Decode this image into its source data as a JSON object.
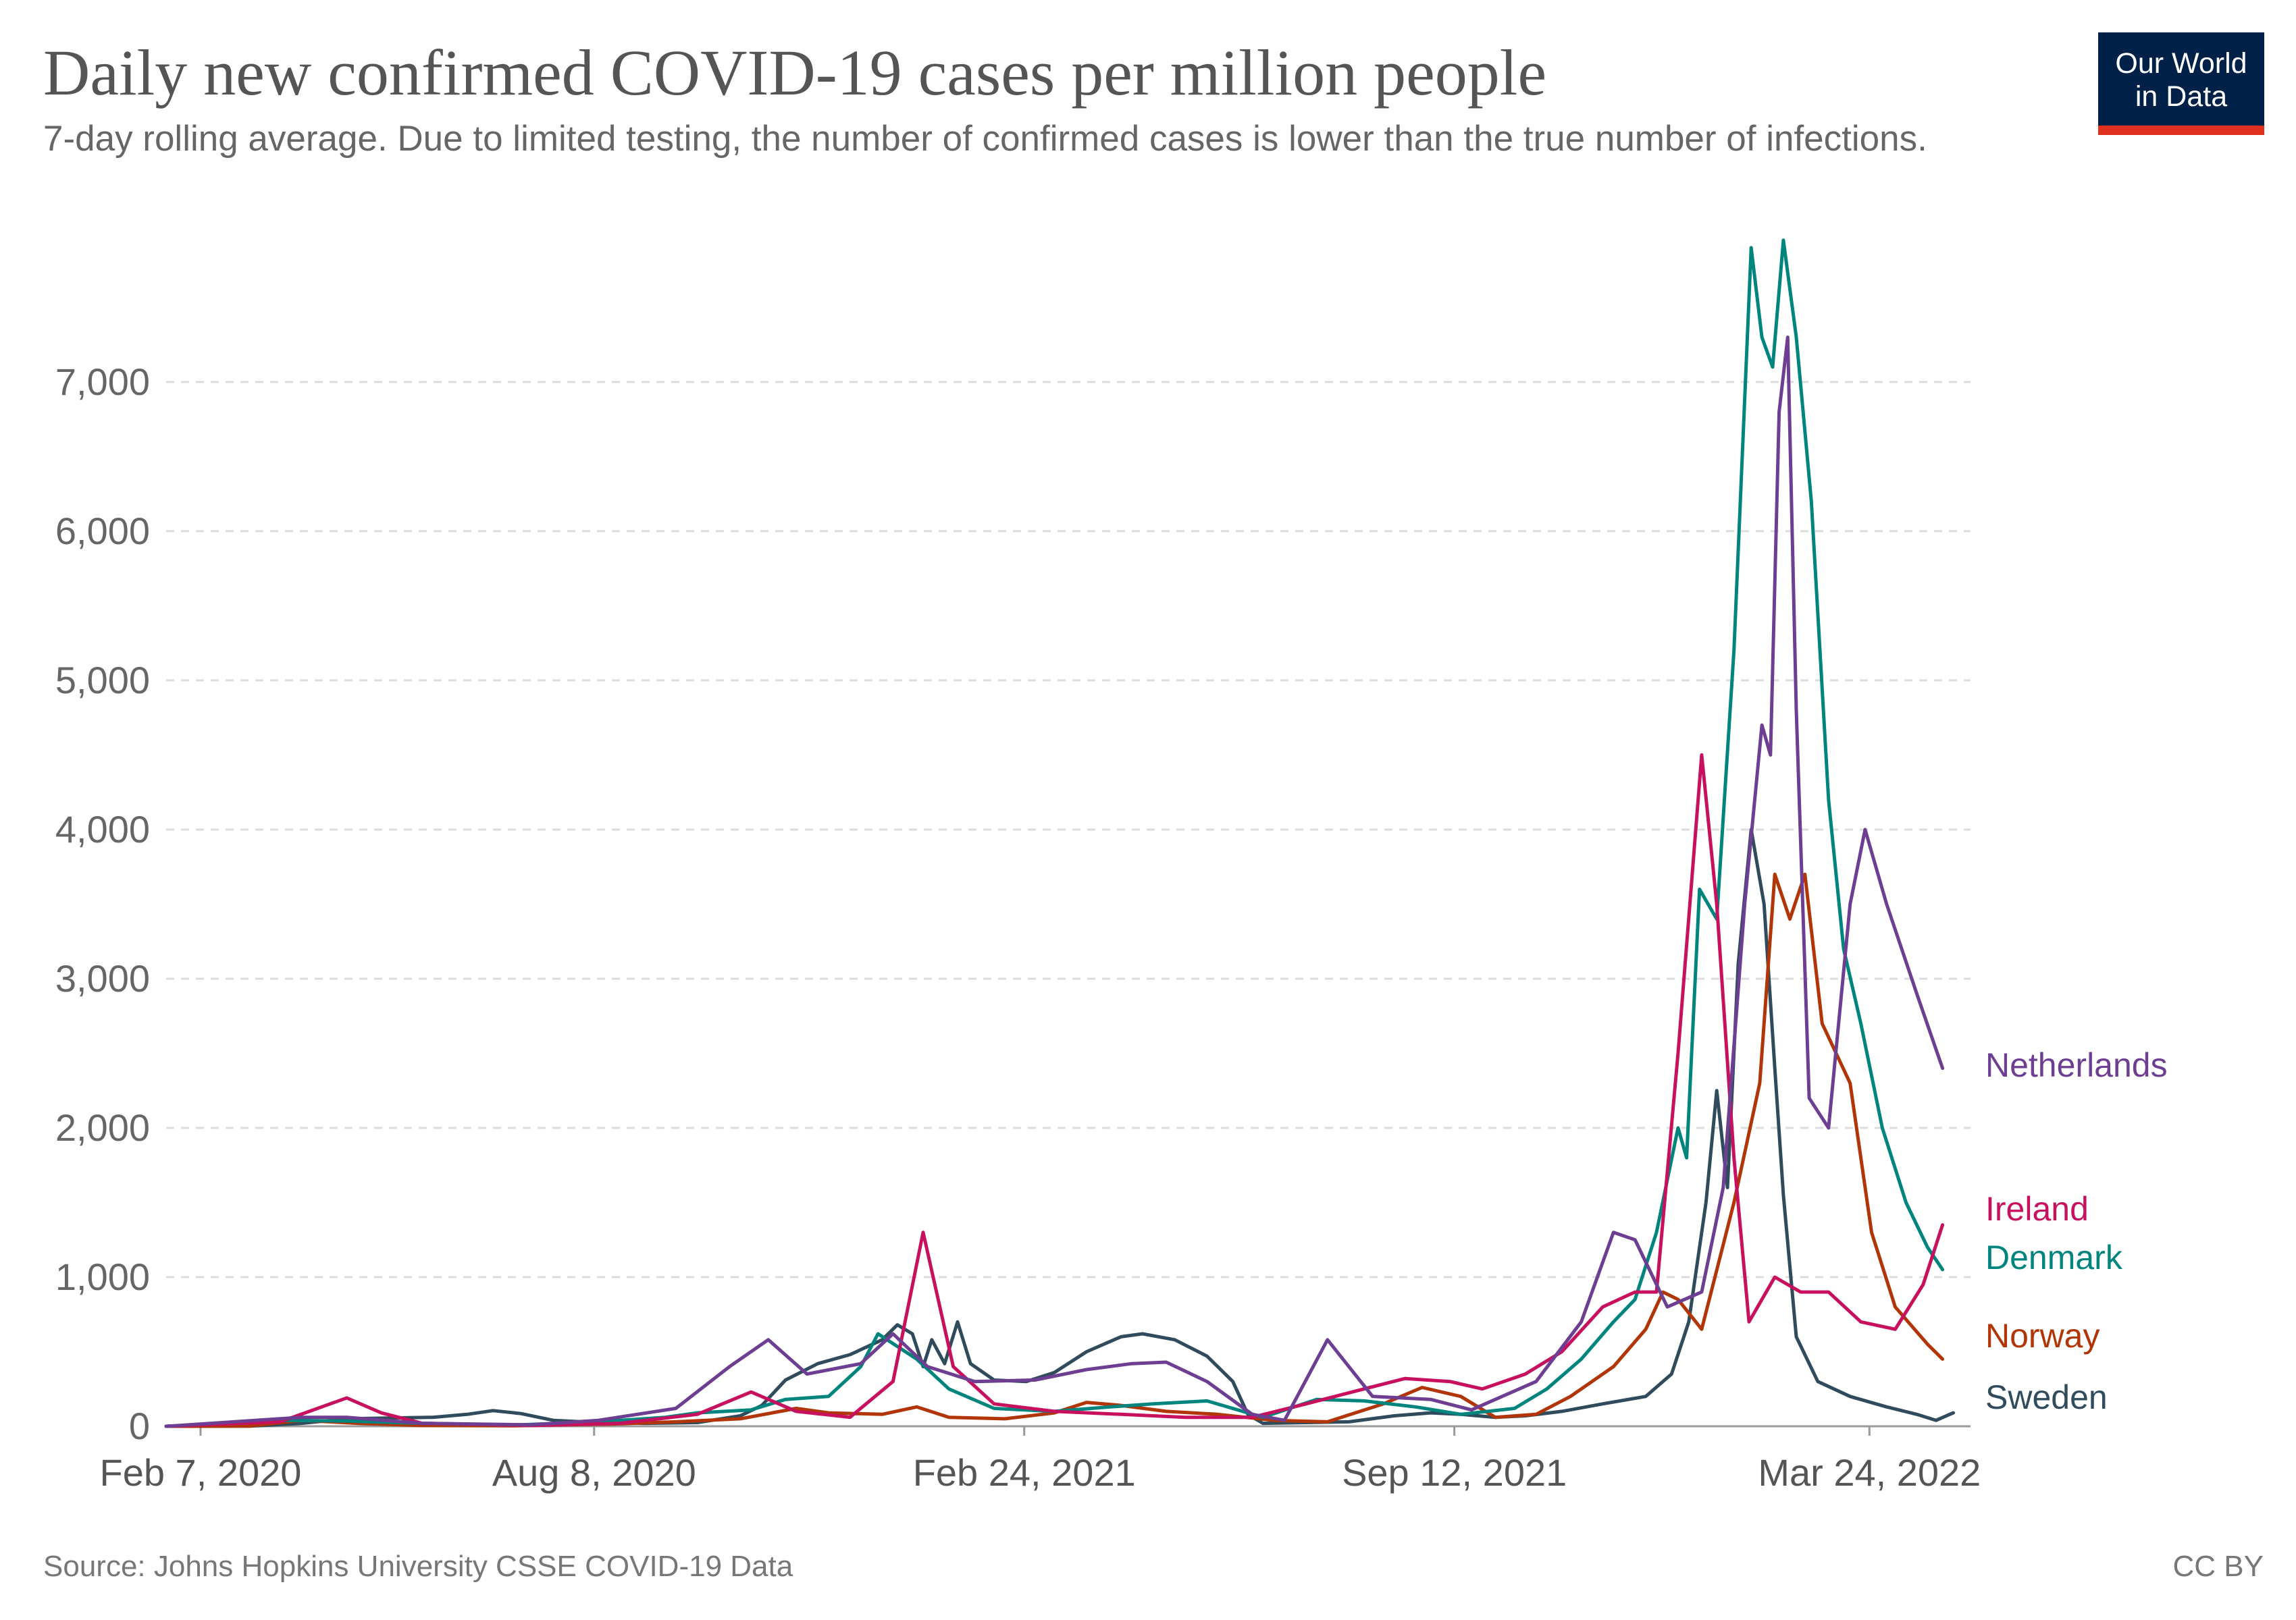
{
  "title": "Daily new confirmed COVID-19 cases per million people",
  "subtitle": "7-day rolling average. Due to limited testing, the number of confirmed cases is lower than the true number of infections.",
  "logo": {
    "line1": "Our World",
    "line2": "in Data"
  },
  "source": "Source: Johns Hopkins University CSSE COVID-19 Data",
  "license": "CC BY",
  "colors": {
    "Netherlands": "#6d3e91",
    "Ireland": "#c8115e",
    "Denmark": "#00847e",
    "Norway": "#b13507",
    "Sweden": "#2f4b5c",
    "grid": "#dddddd",
    "axis": "#999999"
  },
  "chart_data": {
    "type": "line",
    "x_axis": "date",
    "xlim": [
      "2020-01-22",
      "2022-05-10"
    ],
    "ylim": [
      0,
      7900
    ],
    "x_ticks": [
      {
        "date": "2020-02-07",
        "label": "Feb 7, 2020"
      },
      {
        "date": "2020-08-08",
        "label": "Aug 8, 2020"
      },
      {
        "date": "2021-02-24",
        "label": "Feb 24, 2021"
      },
      {
        "date": "2021-09-12",
        "label": "Sep 12, 2021"
      },
      {
        "date": "2022-03-24",
        "label": "Mar 24, 2022"
      }
    ],
    "y_ticks": [
      {
        "value": 0,
        "label": "0"
      },
      {
        "value": 1000,
        "label": "1,000"
      },
      {
        "value": 2000,
        "label": "2,000"
      },
      {
        "value": 3000,
        "label": "3,000"
      },
      {
        "value": 4000,
        "label": "4,000"
      },
      {
        "value": 5000,
        "label": "5,000"
      },
      {
        "value": 6000,
        "label": "6,000"
      },
      {
        "value": 7000,
        "label": "7,000"
      }
    ],
    "grid": "horizontal dashed",
    "legend": "labels at line ends (right)",
    "series": [
      {
        "name": "Sweden",
        "points": [
          [
            "2020-01-22",
            0
          ],
          [
            "2020-03-01",
            1
          ],
          [
            "2020-03-25",
            20
          ],
          [
            "2020-04-15",
            50
          ],
          [
            "2020-05-05",
            55
          ],
          [
            "2020-05-25",
            60
          ],
          [
            "2020-06-10",
            80
          ],
          [
            "2020-06-22",
            105
          ],
          [
            "2020-07-05",
            85
          ],
          [
            "2020-07-20",
            40
          ],
          [
            "2020-08-10",
            25
          ],
          [
            "2020-09-01",
            20
          ],
          [
            "2020-09-25",
            25
          ],
          [
            "2020-10-15",
            70
          ],
          [
            "2020-10-25",
            140
          ],
          [
            "2020-11-05",
            310
          ],
          [
            "2020-11-20",
            420
          ],
          [
            "2020-12-05",
            480
          ],
          [
            "2020-12-20",
            580
          ],
          [
            "2020-12-27",
            680
          ],
          [
            "2021-01-03",
            620
          ],
          [
            "2021-01-08",
            400
          ],
          [
            "2021-01-12",
            580
          ],
          [
            "2021-01-18",
            420
          ],
          [
            "2021-01-24",
            700
          ],
          [
            "2021-01-30",
            420
          ],
          [
            "2021-02-10",
            310
          ],
          [
            "2021-02-25",
            300
          ],
          [
            "2021-03-10",
            360
          ],
          [
            "2021-03-25",
            500
          ],
          [
            "2021-04-10",
            600
          ],
          [
            "2021-04-20",
            620
          ],
          [
            "2021-05-05",
            580
          ],
          [
            "2021-05-20",
            470
          ],
          [
            "2021-06-01",
            300
          ],
          [
            "2021-06-08",
            80
          ],
          [
            "2021-06-15",
            20
          ],
          [
            "2021-07-05",
            25
          ],
          [
            "2021-07-25",
            30
          ],
          [
            "2021-08-15",
            70
          ],
          [
            "2021-09-01",
            90
          ],
          [
            "2021-09-15",
            80
          ],
          [
            "2021-10-01",
            60
          ],
          [
            "2021-10-15",
            70
          ],
          [
            "2021-11-01",
            100
          ],
          [
            "2021-11-20",
            150
          ],
          [
            "2021-12-10",
            200
          ],
          [
            "2021-12-22",
            350
          ],
          [
            "2021-12-30",
            700
          ],
          [
            "2022-01-07",
            1500
          ],
          [
            "2022-01-12",
            2250
          ],
          [
            "2022-01-17",
            1600
          ],
          [
            "2022-01-22",
            3100
          ],
          [
            "2022-01-28",
            4000
          ],
          [
            "2022-02-03",
            3500
          ],
          [
            "2022-02-08",
            2400
          ],
          [
            "2022-02-12",
            1550
          ],
          [
            "2022-02-18",
            600
          ],
          [
            "2022-02-28",
            300
          ],
          [
            "2022-03-15",
            200
          ],
          [
            "2022-04-01",
            130
          ],
          [
            "2022-04-15",
            80
          ],
          [
            "2022-04-24",
            40
          ],
          [
            "2022-05-02",
            90
          ]
        ]
      },
      {
        "name": "Norway",
        "points": [
          [
            "2020-01-22",
            0
          ],
          [
            "2020-03-01",
            2
          ],
          [
            "2020-03-25",
            40
          ],
          [
            "2020-04-20",
            20
          ],
          [
            "2020-05-20",
            5
          ],
          [
            "2020-07-01",
            3
          ],
          [
            "2020-08-15",
            15
          ],
          [
            "2020-09-15",
            30
          ],
          [
            "2020-10-15",
            50
          ],
          [
            "2020-11-10",
            120
          ],
          [
            "2020-11-25",
            90
          ],
          [
            "2020-12-20",
            80
          ],
          [
            "2021-01-05",
            130
          ],
          [
            "2021-01-20",
            60
          ],
          [
            "2021-02-15",
            50
          ],
          [
            "2021-03-10",
            90
          ],
          [
            "2021-03-25",
            160
          ],
          [
            "2021-04-10",
            140
          ],
          [
            "2021-05-01",
            100
          ],
          [
            "2021-05-25",
            80
          ],
          [
            "2021-06-20",
            40
          ],
          [
            "2021-07-15",
            30
          ],
          [
            "2021-08-10",
            150
          ],
          [
            "2021-08-28",
            260
          ],
          [
            "2021-09-15",
            200
          ],
          [
            "2021-10-01",
            60
          ],
          [
            "2021-10-20",
            80
          ],
          [
            "2021-11-05",
            200
          ],
          [
            "2021-11-25",
            400
          ],
          [
            "2021-12-10",
            650
          ],
          [
            "2021-12-18",
            900
          ],
          [
            "2021-12-25",
            850
          ],
          [
            "2022-01-05",
            650
          ],
          [
            "2022-01-20",
            1500
          ],
          [
            "2022-02-01",
            2300
          ],
          [
            "2022-02-08",
            3700
          ],
          [
            "2022-02-15",
            3400
          ],
          [
            "2022-02-22",
            3700
          ],
          [
            "2022-03-02",
            2700
          ],
          [
            "2022-03-15",
            2300
          ],
          [
            "2022-03-25",
            1300
          ],
          [
            "2022-04-05",
            800
          ],
          [
            "2022-04-20",
            550
          ],
          [
            "2022-04-27",
            450
          ]
        ]
      },
      {
        "name": "Denmark",
        "points": [
          [
            "2020-01-22",
            0
          ],
          [
            "2020-03-15",
            40
          ],
          [
            "2020-04-15",
            35
          ],
          [
            "2020-05-20",
            20
          ],
          [
            "2020-07-01",
            8
          ],
          [
            "2020-08-10",
            30
          ],
          [
            "2020-09-10",
            60
          ],
          [
            "2020-09-25",
            90
          ],
          [
            "2020-10-20",
            110
          ],
          [
            "2020-11-05",
            180
          ],
          [
            "2020-11-25",
            200
          ],
          [
            "2020-12-10",
            400
          ],
          [
            "2020-12-18",
            620
          ],
          [
            "2021-01-05",
            450
          ],
          [
            "2021-01-20",
            250
          ],
          [
            "2021-02-10",
            120
          ],
          [
            "2021-03-10",
            100
          ],
          [
            "2021-04-05",
            130
          ],
          [
            "2021-04-25",
            150
          ],
          [
            "2021-05-20",
            170
          ],
          [
            "2021-06-15",
            60
          ],
          [
            "2021-07-10",
            180
          ],
          [
            "2021-08-01",
            170
          ],
          [
            "2021-08-25",
            130
          ],
          [
            "2021-09-15",
            80
          ],
          [
            "2021-10-10",
            120
          ],
          [
            "2021-10-25",
            250
          ],
          [
            "2021-11-10",
            450
          ],
          [
            "2021-11-25",
            700
          ],
          [
            "2021-12-05",
            850
          ],
          [
            "2021-12-15",
            1300
          ],
          [
            "2021-12-25",
            2000
          ],
          [
            "2021-12-29",
            1800
          ],
          [
            "2022-01-04",
            3600
          ],
          [
            "2022-01-12",
            3400
          ],
          [
            "2022-01-20",
            5200
          ],
          [
            "2022-01-28",
            7900
          ],
          [
            "2022-02-02",
            7300
          ],
          [
            "2022-02-07",
            7100
          ],
          [
            "2022-02-12",
            7950
          ],
          [
            "2022-02-18",
            7300
          ],
          [
            "2022-02-25",
            6200
          ],
          [
            "2022-03-05",
            4200
          ],
          [
            "2022-03-12",
            3200
          ],
          [
            "2022-03-20",
            2700
          ],
          [
            "2022-03-30",
            2000
          ],
          [
            "2022-04-10",
            1500
          ],
          [
            "2022-04-20",
            1200
          ],
          [
            "2022-04-27",
            1050
          ]
        ]
      },
      {
        "name": "Ireland",
        "points": [
          [
            "2020-01-22",
            0
          ],
          [
            "2020-03-15",
            30
          ],
          [
            "2020-04-15",
            190
          ],
          [
            "2020-05-01",
            90
          ],
          [
            "2020-05-20",
            20
          ],
          [
            "2020-07-10",
            5
          ],
          [
            "2020-08-20",
            20
          ],
          [
            "2020-09-25",
            80
          ],
          [
            "2020-10-20",
            230
          ],
          [
            "2020-11-10",
            100
          ],
          [
            "2020-12-05",
            60
          ],
          [
            "2020-12-25",
            300
          ],
          [
            "2021-01-08",
            1300
          ],
          [
            "2021-01-22",
            400
          ],
          [
            "2021-02-10",
            150
          ],
          [
            "2021-03-10",
            100
          ],
          [
            "2021-04-10",
            80
          ],
          [
            "2021-05-10",
            60
          ],
          [
            "2021-06-10",
            60
          ],
          [
            "2021-07-05",
            150
          ],
          [
            "2021-08-01",
            250
          ],
          [
            "2021-08-20",
            320
          ],
          [
            "2021-09-10",
            300
          ],
          [
            "2021-09-25",
            250
          ],
          [
            "2021-10-15",
            350
          ],
          [
            "2021-11-01",
            500
          ],
          [
            "2021-11-20",
            800
          ],
          [
            "2021-12-05",
            900
          ],
          [
            "2021-12-15",
            900
          ],
          [
            "2021-12-25",
            2500
          ],
          [
            "2022-01-05",
            4500
          ],
          [
            "2022-01-12",
            3500
          ],
          [
            "2022-01-20",
            1800
          ],
          [
            "2022-01-27",
            700
          ],
          [
            "2022-02-08",
            1000
          ],
          [
            "2022-02-20",
            900
          ],
          [
            "2022-03-05",
            900
          ],
          [
            "2022-03-20",
            700
          ],
          [
            "2022-04-05",
            650
          ],
          [
            "2022-04-18",
            950
          ],
          [
            "2022-04-27",
            1350
          ]
        ]
      },
      {
        "name": "Netherlands",
        "points": [
          [
            "2020-01-22",
            0
          ],
          [
            "2020-03-25",
            60
          ],
          [
            "2020-04-15",
            60
          ],
          [
            "2020-05-20",
            20
          ],
          [
            "2020-07-10",
            10
          ],
          [
            "2020-08-10",
            40
          ],
          [
            "2020-09-15",
            120
          ],
          [
            "2020-10-10",
            400
          ],
          [
            "2020-10-28",
            580
          ],
          [
            "2020-11-15",
            350
          ],
          [
            "2020-12-10",
            420
          ],
          [
            "2020-12-25",
            620
          ],
          [
            "2021-01-10",
            400
          ],
          [
            "2021-02-01",
            300
          ],
          [
            "2021-03-01",
            310
          ],
          [
            "2021-03-25",
            380
          ],
          [
            "2021-04-15",
            420
          ],
          [
            "2021-05-01",
            430
          ],
          [
            "2021-05-20",
            300
          ],
          [
            "2021-06-10",
            80
          ],
          [
            "2021-06-25",
            40
          ],
          [
            "2021-07-15",
            580
          ],
          [
            "2021-08-05",
            200
          ],
          [
            "2021-09-01",
            180
          ],
          [
            "2021-09-20",
            110
          ],
          [
            "2021-10-20",
            300
          ],
          [
            "2021-11-10",
            700
          ],
          [
            "2021-11-25",
            1300
          ],
          [
            "2021-12-05",
            1250
          ],
          [
            "2021-12-20",
            800
          ],
          [
            "2022-01-05",
            900
          ],
          [
            "2022-01-15",
            1600
          ],
          [
            "2022-01-25",
            3500
          ],
          [
            "2022-02-02",
            4700
          ],
          [
            "2022-02-06",
            4500
          ],
          [
            "2022-02-10",
            6800
          ],
          [
            "2022-02-14",
            7300
          ],
          [
            "2022-02-18",
            4800
          ],
          [
            "2022-02-24",
            2200
          ],
          [
            "2022-03-05",
            2000
          ],
          [
            "2022-03-15",
            3500
          ],
          [
            "2022-03-22",
            4000
          ],
          [
            "2022-04-01",
            3500
          ],
          [
            "2022-04-15",
            2900
          ],
          [
            "2022-04-27",
            2400
          ]
        ]
      }
    ]
  }
}
